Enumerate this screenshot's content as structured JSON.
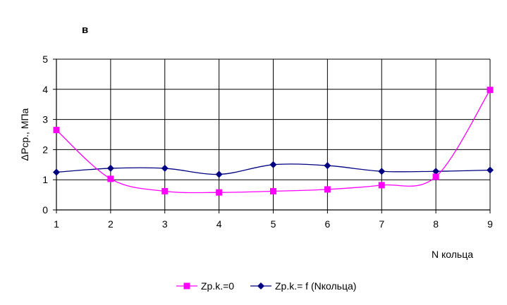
{
  "chart_data": {
    "type": "line",
    "panel_label": "в",
    "title": "",
    "xlabel": "N кольца",
    "ylabel": "ΔРср., МПа",
    "x": [
      1,
      2,
      3,
      4,
      5,
      6,
      7,
      8,
      9
    ],
    "xlim": [
      1,
      9
    ],
    "ylim": [
      0,
      5
    ],
    "yticks": [
      0,
      1,
      2,
      3,
      4,
      5
    ],
    "xticks": [
      1,
      2,
      3,
      4,
      5,
      6,
      7,
      8,
      9
    ],
    "grid": true,
    "smooth": true,
    "legend_position": "bottom",
    "series": [
      {
        "name": "Zp.k.=0",
        "color": "#ff00ff",
        "marker": "square",
        "values": [
          2.65,
          1.03,
          0.62,
          0.58,
          0.62,
          0.68,
          0.82,
          1.1,
          3.98
        ]
      },
      {
        "name": "Zp.k.= f (Nкольца)",
        "color": "#000080",
        "marker": "diamond",
        "values": [
          1.25,
          1.38,
          1.38,
          1.18,
          1.5,
          1.47,
          1.28,
          1.28,
          1.32
        ]
      }
    ]
  }
}
